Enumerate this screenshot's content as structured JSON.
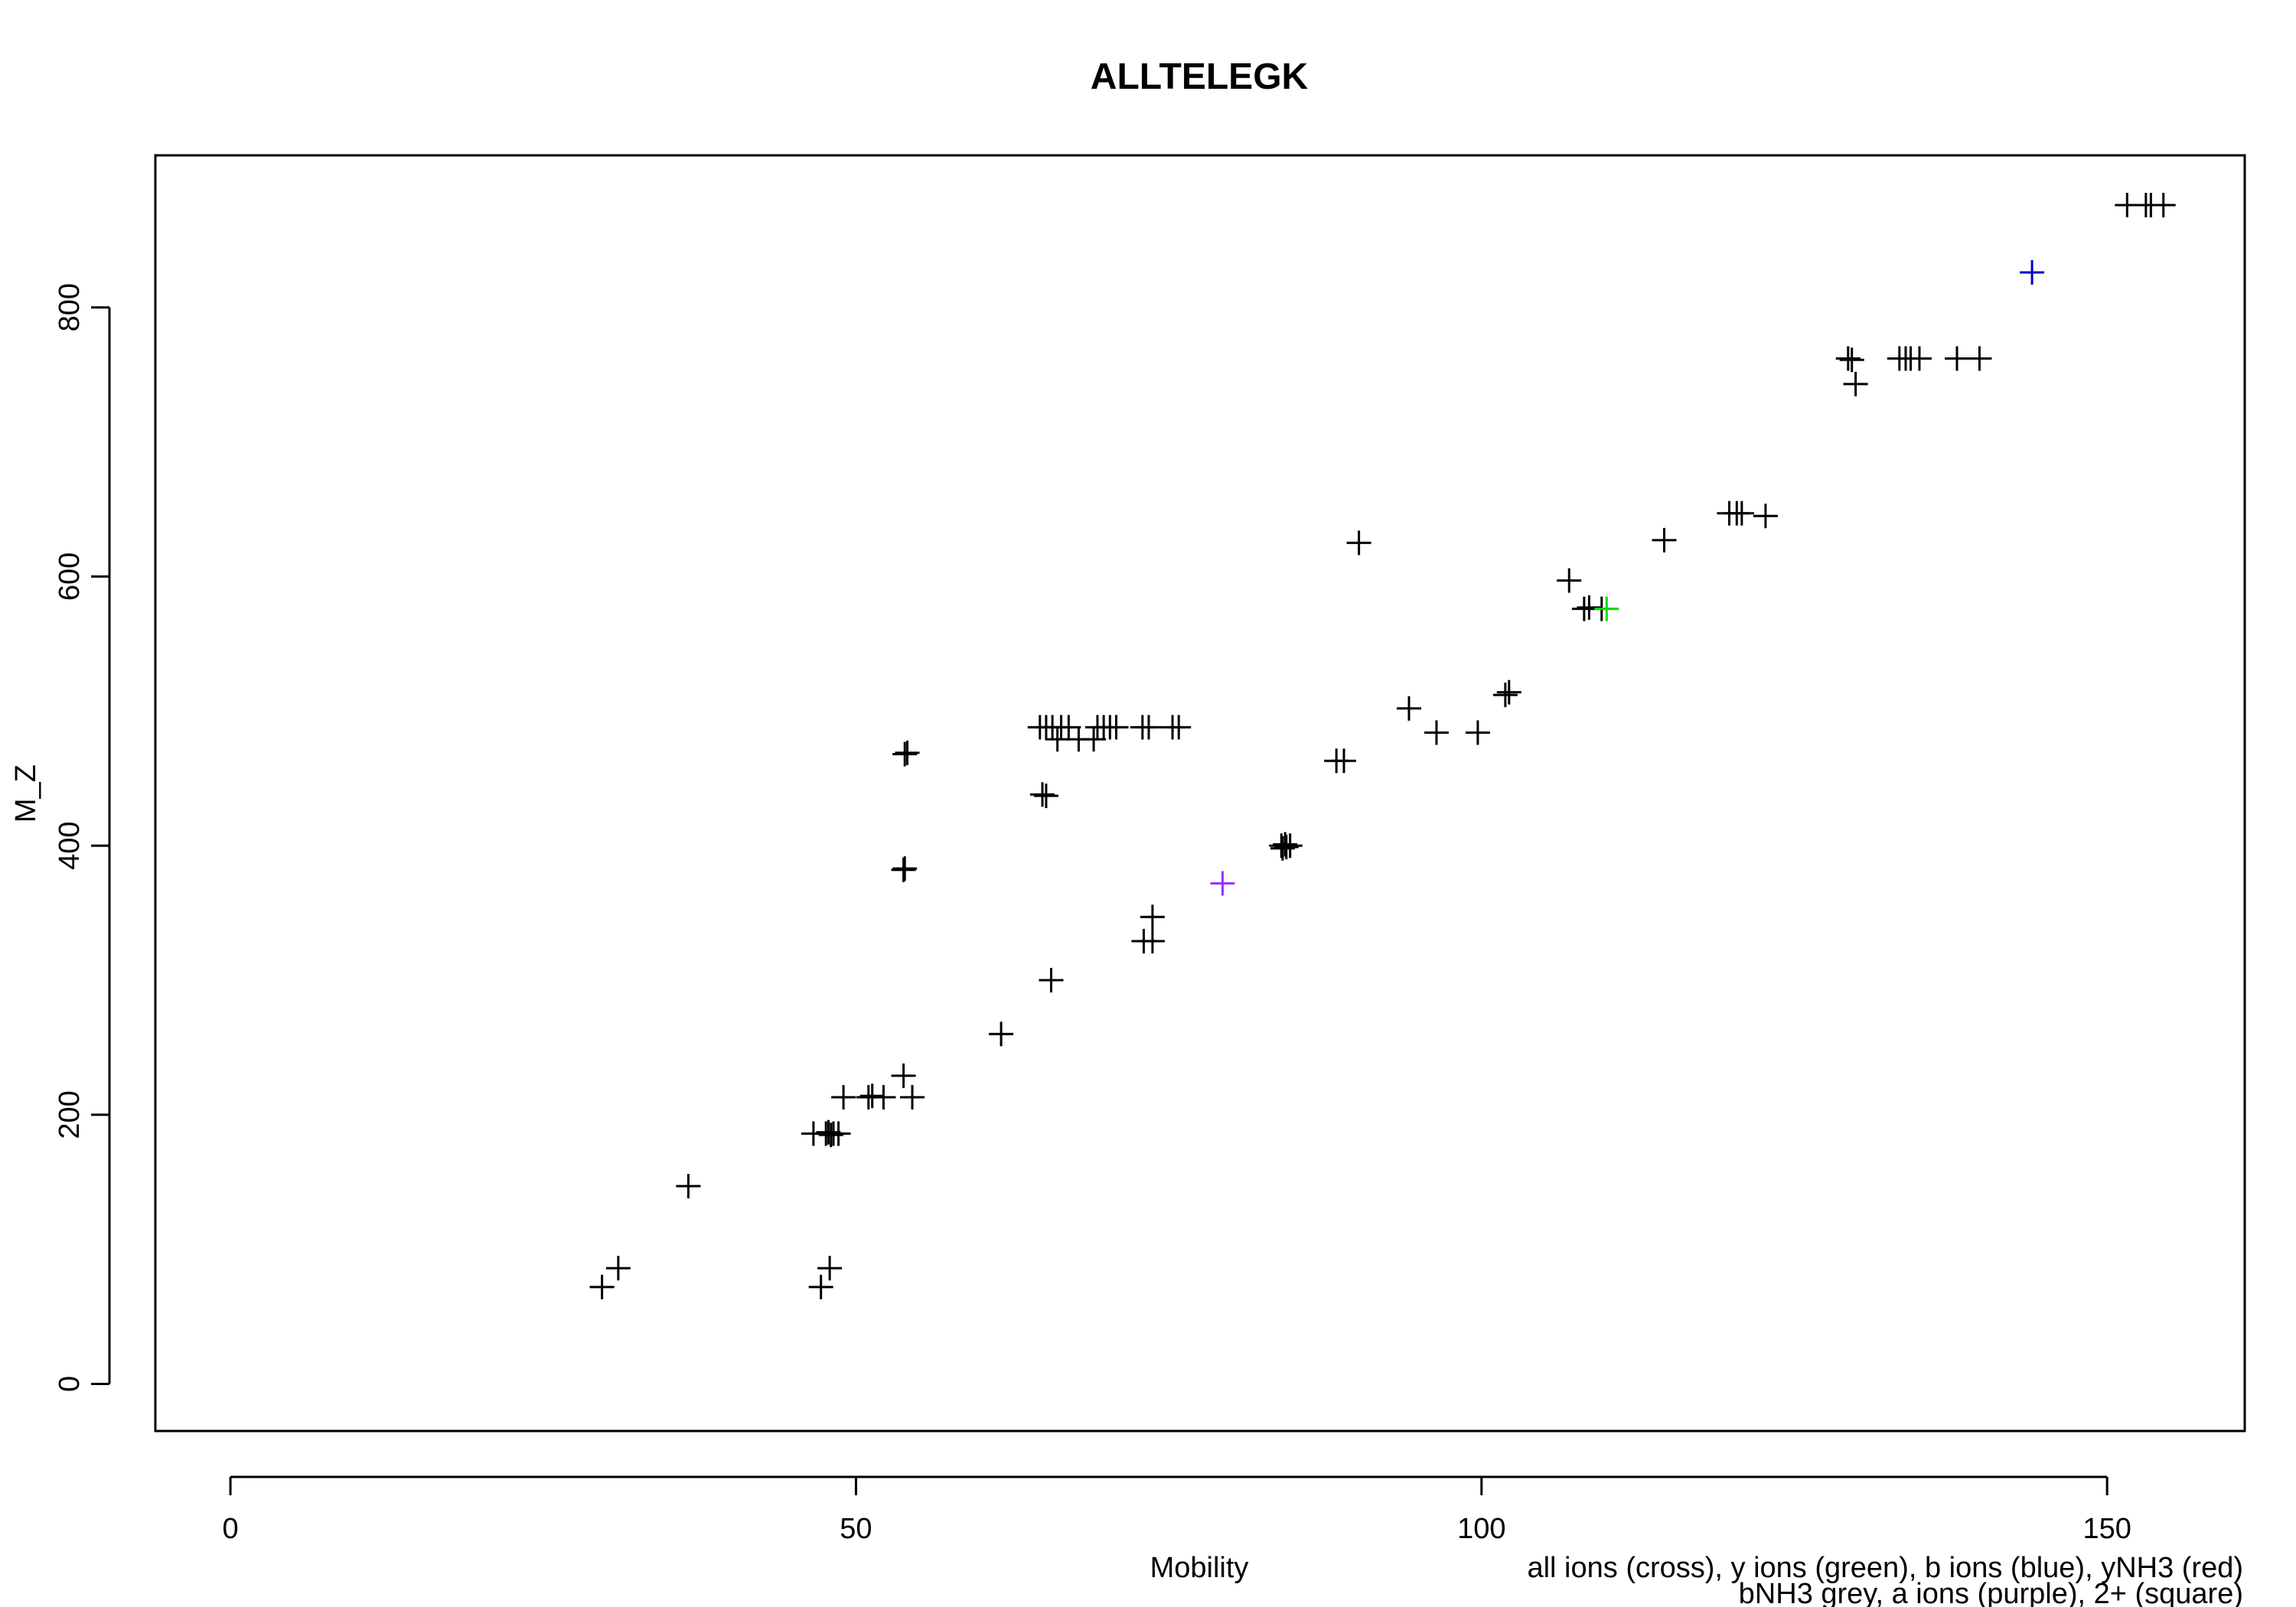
{
  "chart_data": {
    "type": "scatter",
    "title": "ALLTELEGK",
    "xlabel": "Mobility",
    "ylabel": "M_Z",
    "xlim": [
      -6,
      161
    ],
    "ylim": [
      -35,
      913
    ],
    "x_ticks": [
      0,
      50,
      100,
      150
    ],
    "y_ticks": [
      0,
      200,
      400,
      600,
      800
    ],
    "x_tick_labels": [
      "0",
      "50",
      "100",
      "150"
    ],
    "y_tick_labels": [
      "0",
      "200",
      "400",
      "600",
      "800"
    ],
    "marker": "cross",
    "legend_lines": [
      "all ions (cross), y ions (green), b ions (blue), yNH3 (red)",
      "bNH3 grey, a ions (purple), 2+ (square)"
    ],
    "series": [
      {
        "color": "#000000",
        "points": [
          [
            29.7,
            72
          ],
          [
            31.0,
            86
          ],
          [
            36.6,
            147
          ],
          [
            46.6,
            186
          ],
          [
            47.6,
            186
          ],
          [
            47.8,
            187
          ],
          [
            48.0,
            185
          ],
          [
            48.2,
            186
          ],
          [
            48.6,
            186
          ],
          [
            47.2,
            72
          ],
          [
            47.9,
            86
          ],
          [
            49.0,
            213
          ],
          [
            51.0,
            213
          ],
          [
            51.3,
            214
          ],
          [
            52.2,
            213
          ],
          [
            54.5,
            213
          ],
          [
            53.8,
            229
          ],
          [
            53.8,
            382
          ],
          [
            53.9,
            383
          ],
          [
            53.9,
            468
          ],
          [
            54.1,
            469
          ],
          [
            61.6,
            260
          ],
          [
            65.6,
            300
          ],
          [
            64.9,
            438
          ],
          [
            65.2,
            437
          ],
          [
            64.7,
            488
          ],
          [
            65.2,
            488
          ],
          [
            65.7,
            488
          ],
          [
            66.4,
            488
          ],
          [
            67.0,
            488
          ],
          [
            66.1,
            479
          ],
          [
            67.8,
            479
          ],
          [
            69.0,
            479
          ],
          [
            69.3,
            488
          ],
          [
            69.8,
            488
          ],
          [
            70.3,
            488
          ],
          [
            70.8,
            488
          ],
          [
            72.9,
            488
          ],
          [
            73.4,
            488
          ],
          [
            75.3,
            488
          ],
          [
            75.8,
            488
          ],
          [
            73.0,
            329
          ],
          [
            73.7,
            329
          ],
          [
            73.7,
            347
          ],
          [
            84.0,
            400
          ],
          [
            84.3,
            401
          ],
          [
            84.4,
            399
          ],
          [
            84.7,
            400
          ],
          [
            84.1,
            398
          ],
          [
            88.4,
            463
          ],
          [
            89.0,
            463
          ],
          [
            90.2,
            625
          ],
          [
            94.2,
            502
          ],
          [
            96.4,
            484
          ],
          [
            99.7,
            484
          ],
          [
            101.9,
            512
          ],
          [
            102.2,
            514
          ],
          [
            107.0,
            597
          ],
          [
            108.2,
            576
          ],
          [
            108.6,
            577
          ],
          [
            109.6,
            576
          ],
          [
            114.6,
            627
          ],
          [
            119.8,
            647
          ],
          [
            120.4,
            647
          ],
          [
            120.8,
            647
          ],
          [
            122.7,
            645
          ],
          [
            129.3,
            762
          ],
          [
            129.6,
            761
          ],
          [
            129.9,
            743
          ],
          [
            133.4,
            762
          ],
          [
            133.9,
            762
          ],
          [
            134.3,
            762
          ],
          [
            135.0,
            762
          ],
          [
            138.0,
            762
          ],
          [
            139.8,
            762
          ],
          [
            151.6,
            876
          ],
          [
            153.1,
            876
          ],
          [
            153.5,
            876
          ],
          [
            154.5,
            876
          ]
        ]
      },
      {
        "color": "#00dd00",
        "points": [
          [
            110.0,
            576
          ]
        ]
      },
      {
        "color": "#0000cc",
        "points": [
          [
            144.0,
            826
          ]
        ]
      },
      {
        "color": "#9b30ff",
        "points": [
          [
            79.3,
            372
          ]
        ]
      }
    ]
  }
}
